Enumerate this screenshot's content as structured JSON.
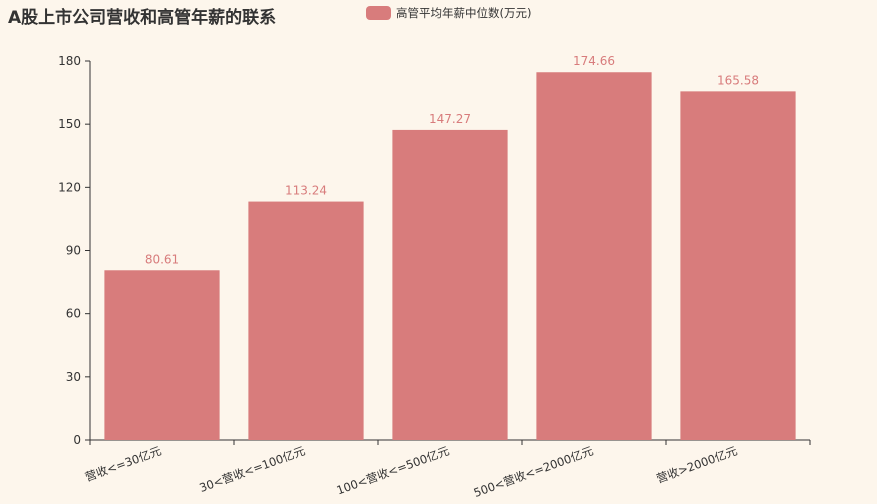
{
  "chart_data": {
    "type": "bar",
    "title": "A股上市公司营收和高管年薪的联系",
    "categories": [
      "营收<=30亿元",
      "30<营收<=100亿元",
      "100<营收<=500亿元",
      "500<营收<=2000亿元",
      "营收>2000亿元"
    ],
    "series": [
      {
        "name": "高管平均年薪中位数(万元)",
        "values": [
          80.61,
          113.24,
          147.27,
          174.66,
          165.58
        ],
        "data_labels": [
          "80.61",
          "113.24",
          "147.27",
          "174.66",
          "165.58"
        ],
        "color": "#d87c7c"
      }
    ],
    "ylim": [
      0,
      180
    ],
    "yticks": [
      "0",
      "30",
      "60",
      "90",
      "120",
      "150",
      "180"
    ],
    "xlabel": "",
    "ylabel": "",
    "grid": false,
    "legend_position": "top"
  },
  "colors": {
    "background": "#fdf6ec",
    "axis": "#333333",
    "text": "#333333"
  }
}
